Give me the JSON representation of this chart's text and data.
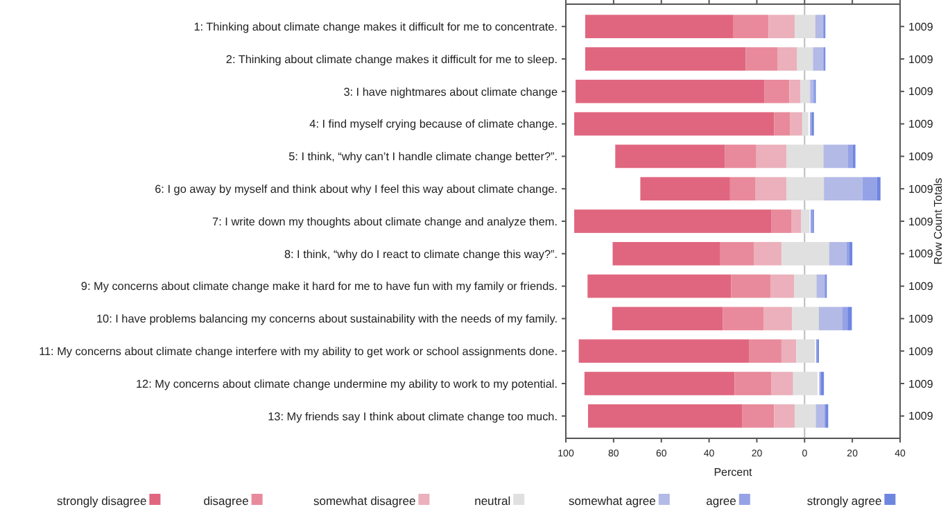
{
  "chart_data": {
    "type": "bar",
    "orientation": "horizontal",
    "xlabel": "Percent",
    "y2label": "Row Count Totals",
    "categories": [
      "1: Thinking about climate change makes it difficult for me to concentrate.",
      "2: Thinking about climate change makes it difficult for me to sleep.",
      "3: I have nightmares about climate change",
      "4: I find myself crying because of climate change.",
      "5: I think, “why can’t I handle climate change better?”.",
      "6: I go away by myself and think about why I feel this way about climate change.",
      "7: I write down my thoughts about climate change and analyze them.",
      "8: I think, “why do I react to climate change this way?”.",
      "9: My concerns about climate change make it hard for me to have fun with my family or friends.",
      "10: I have problems balancing my concerns about sustainability with the needs of my family.",
      "11: My concerns about climate change interfere with my ability to get work or school assignments done.",
      "12: My concerns about climate change undermine my ability to work to my potential.",
      "13: My friends say I think about climate change too much."
    ],
    "y2_categories": [
      "1009",
      "1009",
      "1009",
      "1009",
      "1009",
      "1009",
      "1009",
      "1009",
      "1009",
      "1009",
      "1009",
      "1009",
      "1009"
    ],
    "series": [
      {
        "name": "strongly disagree",
        "color": "#e0667f",
        "base": [
          -91.9,
          -91.9,
          -95.9,
          -96.5,
          -79.3,
          -68.8,
          -96.5,
          -80.4,
          -90.9,
          -80.6,
          -94.6,
          -92.2,
          -90.7
        ],
        "values": [
          61.9,
          67.3,
          79.0,
          83.7,
          46.0,
          37.6,
          82.5,
          45.1,
          60.1,
          46.3,
          71.3,
          62.9,
          64.5
        ]
      },
      {
        "name": "disagree",
        "color": "#e88a9b",
        "base": [
          -30.0,
          -24.6,
          -16.9,
          -12.8,
          -33.3,
          -31.2,
          -14.0,
          -35.3,
          -30.8,
          -34.3,
          -23.3,
          -29.3,
          -26.2
        ],
        "values": [
          14.9,
          13.2,
          10.5,
          6.8,
          13.1,
          10.7,
          8.4,
          14.0,
          16.5,
          17.1,
          13.6,
          15.3,
          13.4
        ]
      },
      {
        "name": "somewhat disagree",
        "color": "#ebb0bb",
        "base": [
          -15.1,
          -11.4,
          -6.4,
          -6.0,
          -20.2,
          -20.5,
          -5.6,
          -21.3,
          -14.3,
          -17.2,
          -9.7,
          -14.0,
          -12.8
        ],
        "values": [
          11.0,
          8.3,
          4.7,
          5.0,
          12.6,
          12.9,
          4.2,
          11.6,
          10.0,
          12.0,
          6.2,
          9.2,
          8.7
        ]
      },
      {
        "name": "neutral",
        "color": "#e0e0e0",
        "base": [
          -4.1,
          -3.1,
          -1.7,
          -1.0,
          -7.6,
          -7.6,
          -1.4,
          -9.7,
          -4.3,
          -5.2,
          -3.5,
          -4.8,
          -4.1
        ],
        "values": [
          8.6,
          6.6,
          4.0,
          2.6,
          15.5,
          15.7,
          3.5,
          20.0,
          9.3,
          11.2,
          7.8,
          10.2,
          8.8
        ]
      },
      {
        "name": "somewhat agree",
        "color": "#b3bae6",
        "base": [
          4.5,
          3.5,
          2.3,
          null,
          7.9,
          8.1,
          null,
          10.3,
          5.0,
          6.0,
          null,
          null,
          4.7
        ],
        "values": [
          3.1,
          4.3,
          1.2,
          null,
          10.3,
          16.1,
          null,
          7.3,
          3.3,
          9.7,
          null,
          null,
          3.6
        ]
      },
      {
        "name": "agree",
        "color": "#96a2e6",
        "base": [
          7.6,
          7.8,
          3.5,
          2.3,
          18.2,
          24.2,
          2.5,
          17.6,
          8.3,
          15.7,
          4.8,
          6.2,
          8.3
        ],
        "values": [
          0.5,
          0.3,
          0.7,
          0.8,
          2.0,
          6.2,
          0.8,
          1.2,
          0.4,
          2.3,
          0.6,
          0.6,
          0.4
        ]
      },
      {
        "name": "strongly agree",
        "color": "#6f86e0",
        "base": [
          8.1,
          8.1,
          4.2,
          3.1,
          20.2,
          30.4,
          3.3,
          18.8,
          8.7,
          18.0,
          5.4,
          6.8,
          8.7
        ],
        "values": [
          0.6,
          0.6,
          0.5,
          0.8,
          1.1,
          1.4,
          0.6,
          1.2,
          0.6,
          1.8,
          0.6,
          1.3,
          1.2
        ]
      }
    ],
    "xlim": [
      -100,
      40
    ],
    "xticks": [
      {
        "value": -100,
        "label": "100"
      },
      {
        "value": -80,
        "label": "80"
      },
      {
        "value": -60,
        "label": "60"
      },
      {
        "value": -40,
        "label": "40"
      },
      {
        "value": -20,
        "label": "20"
      },
      0,
      20,
      40
    ],
    "ref_lines": [
      {
        "axis": "x",
        "value": 0,
        "color": "#bbbbbb"
      }
    ],
    "legend": "bottom",
    "grid": false
  }
}
